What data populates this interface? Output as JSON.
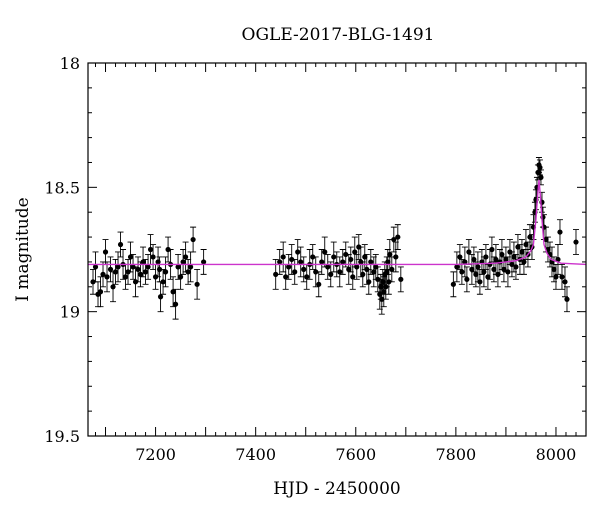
{
  "chart_data": {
    "type": "scatter",
    "title": "OGLE-2017-BLG-1491",
    "xlabel": "HJD - 2450000",
    "ylabel": "I magnitude",
    "xlim": [
      7065,
      8060
    ],
    "ylim": [
      19.5,
      18.0
    ],
    "y_inverted": true,
    "x_ticks": [
      7200,
      7400,
      7600,
      7800,
      8000
    ],
    "x_tick_labels": [
      "7200",
      "7400",
      "7600",
      "7800",
      "8000"
    ],
    "y_ticks": [
      18.0,
      18.5,
      19.0,
      19.5
    ],
    "y_tick_labels": [
      "18",
      "18.5",
      "19",
      "19.5"
    ],
    "grid": false,
    "colors": {
      "points": "#000000",
      "model": "#cc33cc"
    },
    "model": {
      "name": "",
      "baseline": 18.81,
      "peak_x": 7966,
      "peak_y": 18.47,
      "points": [
        [
          7065,
          18.81
        ],
        [
          7800,
          18.81
        ],
        [
          7880,
          18.805
        ],
        [
          7920,
          18.795
        ],
        [
          7940,
          18.78
        ],
        [
          7950,
          18.755
        ],
        [
          7955,
          18.73
        ],
        [
          7960,
          18.63
        ],
        [
          7963,
          18.54
        ],
        [
          7966,
          18.47
        ],
        [
          7969,
          18.54
        ],
        [
          7972,
          18.63
        ],
        [
          7976,
          18.73
        ],
        [
          7982,
          18.765
        ],
        [
          7990,
          18.79
        ],
        [
          8010,
          18.805
        ],
        [
          8060,
          18.81
        ]
      ]
    },
    "series": [
      {
        "points": [
          [
            7075,
            18.88,
            0.05
          ],
          [
            7080,
            18.82,
            0.06
          ],
          [
            7085,
            18.93,
            0.05
          ],
          [
            7090,
            18.92,
            0.06
          ],
          [
            7095,
            18.85,
            0.05
          ],
          [
            7100,
            18.76,
            0.05
          ],
          [
            7103,
            18.86,
            0.06
          ],
          [
            7110,
            18.83,
            0.05
          ],
          [
            7115,
            18.9,
            0.06
          ],
          [
            7120,
            18.84,
            0.05
          ],
          [
            7125,
            18.82,
            0.06
          ],
          [
            7130,
            18.73,
            0.05
          ],
          [
            7135,
            18.81,
            0.06
          ],
          [
            7140,
            18.86,
            0.05
          ],
          [
            7145,
            18.84,
            0.05
          ],
          [
            7150,
            18.78,
            0.06
          ],
          [
            7155,
            18.82,
            0.05
          ],
          [
            7160,
            18.88,
            0.06
          ],
          [
            7165,
            18.83,
            0.05
          ],
          [
            7170,
            18.85,
            0.05
          ],
          [
            7175,
            18.8,
            0.06
          ],
          [
            7180,
            18.84,
            0.05
          ],
          [
            7185,
            18.82,
            0.05
          ],
          [
            7190,
            18.75,
            0.06
          ],
          [
            7195,
            18.78,
            0.05
          ],
          [
            7200,
            18.86,
            0.05
          ],
          [
            7205,
            18.8,
            0.06
          ],
          [
            7208,
            18.83,
            0.05
          ],
          [
            7210,
            18.94,
            0.06
          ],
          [
            7215,
            18.88,
            0.05
          ],
          [
            7220,
            18.84,
            0.06
          ],
          [
            7225,
            18.75,
            0.05
          ],
          [
            7230,
            18.81,
            0.06
          ],
          [
            7235,
            18.92,
            0.06
          ],
          [
            7240,
            18.97,
            0.06
          ],
          [
            7245,
            18.82,
            0.05
          ],
          [
            7250,
            18.86,
            0.05
          ],
          [
            7255,
            18.8,
            0.05
          ],
          [
            7260,
            18.78,
            0.06
          ],
          [
            7265,
            18.84,
            0.05
          ],
          [
            7270,
            18.82,
            0.06
          ],
          [
            7275,
            18.71,
            0.05
          ],
          [
            7283,
            18.89,
            0.06
          ],
          [
            7296,
            18.8,
            0.05
          ],
          [
            7440,
            18.85,
            0.06
          ],
          [
            7448,
            18.8,
            0.05
          ],
          [
            7455,
            18.78,
            0.06
          ],
          [
            7460,
            18.86,
            0.05
          ],
          [
            7466,
            18.82,
            0.05
          ],
          [
            7472,
            18.79,
            0.06
          ],
          [
            7478,
            18.84,
            0.05
          ],
          [
            7484,
            18.76,
            0.05
          ],
          [
            7490,
            18.8,
            0.06
          ],
          [
            7496,
            18.83,
            0.05
          ],
          [
            7502,
            18.86,
            0.05
          ],
          [
            7508,
            18.81,
            0.06
          ],
          [
            7514,
            18.78,
            0.05
          ],
          [
            7520,
            18.84,
            0.06
          ],
          [
            7526,
            18.89,
            0.05
          ],
          [
            7532,
            18.8,
            0.05
          ],
          [
            7538,
            18.76,
            0.06
          ],
          [
            7544,
            18.82,
            0.05
          ],
          [
            7550,
            18.85,
            0.05
          ],
          [
            7556,
            18.78,
            0.06
          ],
          [
            7562,
            18.81,
            0.05
          ],
          [
            7568,
            18.84,
            0.06
          ],
          [
            7574,
            18.8,
            0.05
          ],
          [
            7580,
            18.77,
            0.05
          ],
          [
            7586,
            18.83,
            0.06
          ],
          [
            7590,
            18.79,
            0.05
          ],
          [
            7594,
            18.86,
            0.05
          ],
          [
            7598,
            18.76,
            0.06
          ],
          [
            7602,
            18.82,
            0.05
          ],
          [
            7606,
            18.74,
            0.05
          ],
          [
            7610,
            18.8,
            0.06
          ],
          [
            7614,
            18.85,
            0.05
          ],
          [
            7618,
            18.78,
            0.05
          ],
          [
            7622,
            18.83,
            0.06
          ],
          [
            7626,
            18.88,
            0.05
          ],
          [
            7630,
            18.8,
            0.05
          ],
          [
            7636,
            18.84,
            0.06
          ],
          [
            7640,
            18.82,
            0.05
          ],
          [
            7644,
            18.87,
            0.05
          ],
          [
            7648,
            18.93,
            0.06
          ],
          [
            7650,
            18.9,
            0.05
          ],
          [
            7652,
            18.95,
            0.06
          ],
          [
            7654,
            18.88,
            0.05
          ],
          [
            7656,
            18.92,
            0.06
          ],
          [
            7658,
            18.85,
            0.05
          ],
          [
            7660,
            18.9,
            0.05
          ],
          [
            7662,
            18.84,
            0.06
          ],
          [
            7664,
            18.8,
            0.05
          ],
          [
            7666,
            18.88,
            0.05
          ],
          [
            7668,
            18.77,
            0.06
          ],
          [
            7672,
            18.83,
            0.05
          ],
          [
            7676,
            18.71,
            0.05
          ],
          [
            7680,
            18.78,
            0.06
          ],
          [
            7684,
            18.7,
            0.05
          ],
          [
            7690,
            18.87,
            0.05
          ],
          [
            7795,
            18.89,
            0.05
          ],
          [
            7802,
            18.82,
            0.06
          ],
          [
            7808,
            18.78,
            0.05
          ],
          [
            7812,
            18.84,
            0.05
          ],
          [
            7818,
            18.8,
            0.06
          ],
          [
            7822,
            18.87,
            0.05
          ],
          [
            7826,
            18.76,
            0.05
          ],
          [
            7832,
            18.83,
            0.06
          ],
          [
            7836,
            18.79,
            0.05
          ],
          [
            7840,
            18.85,
            0.05
          ],
          [
            7844,
            18.82,
            0.06
          ],
          [
            7848,
            18.88,
            0.05
          ],
          [
            7852,
            18.8,
            0.05
          ],
          [
            7856,
            18.84,
            0.06
          ],
          [
            7860,
            18.78,
            0.05
          ],
          [
            7864,
            18.86,
            0.05
          ],
          [
            7868,
            18.81,
            0.06
          ],
          [
            7872,
            18.75,
            0.05
          ],
          [
            7876,
            18.83,
            0.05
          ],
          [
            7880,
            18.79,
            0.06
          ],
          [
            7884,
            18.85,
            0.05
          ],
          [
            7888,
            18.8,
            0.05
          ],
          [
            7892,
            18.77,
            0.06
          ],
          [
            7896,
            18.83,
            0.05
          ],
          [
            7900,
            18.79,
            0.05
          ],
          [
            7904,
            18.84,
            0.06
          ],
          [
            7908,
            18.76,
            0.05
          ],
          [
            7912,
            18.81,
            0.05
          ],
          [
            7916,
            18.78,
            0.06
          ],
          [
            7920,
            18.82,
            0.05
          ],
          [
            7924,
            18.74,
            0.05
          ],
          [
            7928,
            18.79,
            0.06
          ],
          [
            7932,
            18.76,
            0.05
          ],
          [
            7936,
            18.8,
            0.05
          ],
          [
            7940,
            18.73,
            0.06
          ],
          [
            7944,
            18.77,
            0.05
          ],
          [
            7948,
            18.7,
            0.05
          ],
          [
            7952,
            18.74,
            0.05
          ],
          [
            7955,
            18.66,
            0.05
          ],
          [
            7958,
            18.6,
            0.04
          ],
          [
            7960,
            18.55,
            0.04
          ],
          [
            7962,
            18.5,
            0.04
          ],
          [
            7964,
            18.44,
            0.03
          ],
          [
            7966,
            18.41,
            0.03
          ],
          [
            7968,
            18.42,
            0.03
          ],
          [
            7970,
            18.46,
            0.03
          ],
          [
            7972,
            18.56,
            0.04
          ],
          [
            7974,
            18.62,
            0.04
          ],
          [
            7976,
            18.66,
            0.05
          ],
          [
            7980,
            18.71,
            0.05
          ],
          [
            7984,
            18.75,
            0.05
          ],
          [
            7988,
            18.77,
            0.05
          ],
          [
            7992,
            18.8,
            0.06
          ],
          [
            7996,
            18.83,
            0.05
          ],
          [
            8000,
            18.86,
            0.05
          ],
          [
            8004,
            18.79,
            0.06
          ],
          [
            8008,
            18.68,
            0.05
          ],
          [
            8012,
            18.86,
            0.05
          ],
          [
            8018,
            18.88,
            0.06
          ],
          [
            8022,
            18.95,
            0.05
          ],
          [
            8040,
            18.72,
            0.05
          ]
        ]
      }
    ]
  }
}
